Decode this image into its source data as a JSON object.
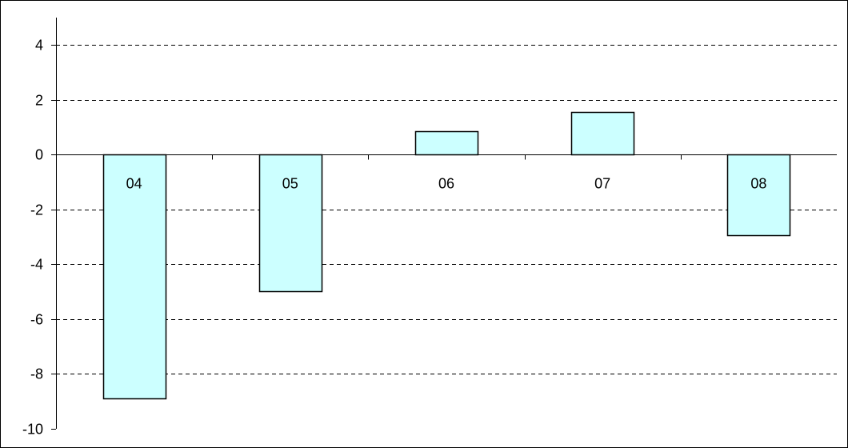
{
  "chart_data": {
    "type": "bar",
    "title": "",
    "xlabel": "",
    "ylabel": "",
    "categories": [
      "04",
      "05",
      "06",
      "07",
      "08"
    ],
    "values": [
      -8.9,
      -5.0,
      0.85,
      1.55,
      -2.95
    ],
    "ylim": [
      -10,
      4
    ],
    "yticks": [
      4,
      2,
      0,
      -2,
      -4,
      -6,
      -8,
      -10
    ],
    "grid": true,
    "grid_style": "dashed",
    "legend": "none",
    "category_labels_position": "inside-axis-area"
  },
  "colors": {
    "bar_fill": "#CCFFFF",
    "bar_stroke": "#000000",
    "grid": "#000000",
    "axis": "#000000",
    "background": "#FFFFFF"
  }
}
